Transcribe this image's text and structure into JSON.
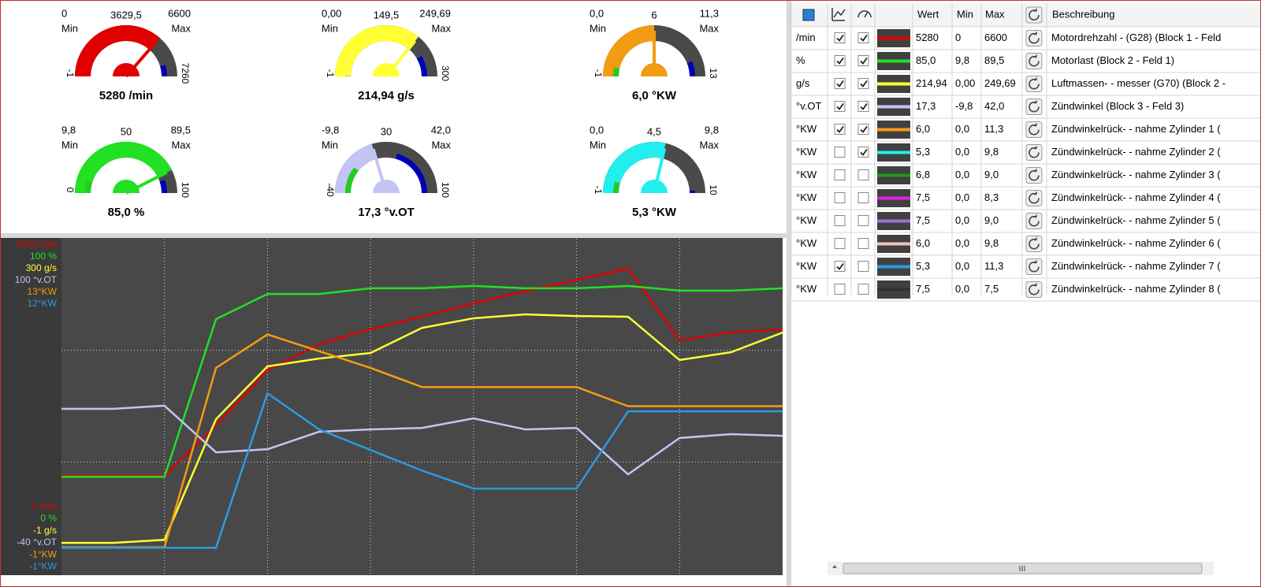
{
  "gauges": [
    {
      "min": {
        "value": 0,
        "label": "0"
      },
      "min_caption": "Min",
      "mid_label": "3629,5",
      "max": {
        "value": 6600,
        "label": "6600"
      },
      "max_caption": "Max",
      "scale_start": -1,
      "scale_end": 7260,
      "value": 5280,
      "value_label": "5280  /min",
      "color": "#e00000"
    },
    {
      "min": {
        "value": 0,
        "label": "0,00"
      },
      "min_caption": "Min",
      "mid_label": "149,5",
      "max": {
        "value": 249.69,
        "label": "249,69"
      },
      "max_caption": "Max",
      "scale_start": -1,
      "scale_end": 300,
      "value": 214.94,
      "value_label": "214,94  g/s",
      "color": "#ffff33"
    },
    {
      "min": {
        "value": 0,
        "label": "0,0"
      },
      "min_caption": "Min",
      "mid_label": "6",
      "max": {
        "value": 11.3,
        "label": "11,3"
      },
      "max_caption": "Max",
      "scale_start": -1,
      "scale_end": 13,
      "value": 6.0,
      "value_label": "6,0 °KW",
      "color": "#f39c12"
    },
    {
      "min": {
        "value": 9.8,
        "label": "9,8"
      },
      "min_caption": "Min",
      "mid_label": "50",
      "max": {
        "value": 89.5,
        "label": "89,5"
      },
      "max_caption": "Max",
      "scale_start": 0,
      "scale_end": 100,
      "value": 85.0,
      "value_label": "85,0  %",
      "color": "#22e022"
    },
    {
      "min": {
        "value": -9.8,
        "label": "-9,8"
      },
      "min_caption": "Min",
      "mid_label": "30",
      "max": {
        "value": 42.0,
        "label": "42,0"
      },
      "max_caption": "Max",
      "scale_start": -40,
      "scale_end": 100,
      "value": 17.3,
      "value_label": "17,3  °v.OT",
      "color": "#c4c4f4"
    },
    {
      "min": {
        "value": 0,
        "label": "0,0"
      },
      "min_caption": "Min",
      "mid_label": "4,5",
      "max": {
        "value": 9.8,
        "label": "9,8"
      },
      "max_caption": "Max",
      "scale_start": -1,
      "scale_end": 10,
      "value": 5.3,
      "value_label": "5,3 °KW",
      "color": "#22eeee"
    }
  ],
  "plot": {
    "series": [
      {
        "color": "#e00000",
        "top_label": "7260 /min",
        "bottom_label": "-1 /min",
        "lim": [
          -1,
          7260
        ],
        "values": [
          2120,
          2120,
          2120,
          3210,
          4410,
          4970,
          5300,
          5570,
          5860,
          6120,
          6370,
          6610,
          5060,
          5230,
          5300
        ]
      },
      {
        "color": "#22e022",
        "top_label": "100 %",
        "bottom_label": "0 %",
        "lim": [
          0,
          100
        ],
        "values": [
          28.9,
          28.9,
          28.9,
          76.0,
          83.5,
          83.5,
          85.2,
          85.2,
          85.9,
          85.2,
          85.2,
          85.9,
          84.5,
          84.5,
          85.2
        ]
      },
      {
        "color": "#ffff33",
        "top_label": "300 g/s",
        "bottom_label": "-1 g/s",
        "lim": [
          -1,
          300
        ],
        "values": [
          26.6,
          26.6,
          29.4,
          137.8,
          185.3,
          192.3,
          197.3,
          219.9,
          228.5,
          232.0,
          230.5,
          229.9,
          191.0,
          198.0,
          215.7
        ]
      },
      {
        "color": "#c4c4f4",
        "top_label": "100 °v.OT",
        "bottom_label": "-40 °v.OT",
        "lim": [
          -40,
          100
        ],
        "values": [
          28.9,
          28.9,
          30.2,
          10.7,
          12.0,
          19.3,
          20.3,
          20.9,
          24.9,
          20.3,
          20.9,
          1.5,
          16.7,
          18.3,
          17.6
        ]
      },
      {
        "color": "#f39c12",
        "top_label": "13°KW",
        "bottom_label": "-1°KW",
        "lim": [
          -1,
          13
        ],
        "values": [
          0.1,
          0.1,
          0.1,
          7.6,
          9.0,
          8.3,
          7.6,
          6.8,
          6.8,
          6.8,
          6.8,
          6.0,
          6.0,
          6.0,
          6.0
        ]
      },
      {
        "color": "#2b9be0",
        "top_label": "12°KW",
        "bottom_label": "-1°KW",
        "lim": [
          -1,
          12
        ],
        "values": [
          0.0,
          0.0,
          0.0,
          0.0,
          6.0,
          4.6,
          3.8,
          3.0,
          2.3,
          2.3,
          2.3,
          5.3,
          5.3,
          5.3,
          5.3
        ]
      }
    ]
  },
  "table": {
    "header": [
      "Wert",
      "Min",
      "Max",
      "Beschreibung"
    ],
    "rows": [
      {
        "unit": "/min",
        "chart": true,
        "gauge": true,
        "color": "#e00000",
        "value": "5280",
        "min": "0",
        "max": "6600",
        "description": "Motordrehzahl - (G28) (Block 1 - Feld"
      },
      {
        "unit": "%",
        "chart": true,
        "gauge": true,
        "color": "#22e022",
        "value": "85,0",
        "min": "9,8",
        "max": "89,5",
        "description": "Motorlast (Block 2 - Feld 1)"
      },
      {
        "unit": "g/s",
        "chart": true,
        "gauge": true,
        "color": "#ffff33",
        "value": "214,94",
        "min": "0,00",
        "max": "249,69",
        "description": "Luftmassen- - messer (G70) (Block 2 -"
      },
      {
        "unit": "°v.OT",
        "chart": true,
        "gauge": true,
        "color": "#c4c4f4",
        "value": "17,3",
        "min": "-9,8",
        "max": "42,0",
        "description": "Zündwinkel (Block 3 - Feld 3)"
      },
      {
        "unit": "°KW",
        "chart": true,
        "gauge": true,
        "color": "#f39c12",
        "value": "6,0",
        "min": "0,0",
        "max": "11,3",
        "description": "Zündwinkelrück- - nahme Zylinder 1 ("
      },
      {
        "unit": "°KW",
        "chart": false,
        "gauge": true,
        "color": "#22eeee",
        "value": "5,3",
        "min": "0,0",
        "max": "9,8",
        "description": "Zündwinkelrück- - nahme Zylinder 2 ("
      },
      {
        "unit": "°KW",
        "chart": false,
        "gauge": false,
        "color": "#1a9a1a",
        "value": "6,8",
        "min": "0,0",
        "max": "9,0",
        "description": "Zündwinkelrück- - nahme Zylinder 3 ("
      },
      {
        "unit": "°KW",
        "chart": false,
        "gauge": false,
        "color": "#e020e0",
        "value": "7,5",
        "min": "0,0",
        "max": "8,3",
        "description": "Zündwinkelrück- - nahme Zylinder 4 ("
      },
      {
        "unit": "°KW",
        "chart": false,
        "gauge": false,
        "color": "#9a70d8",
        "value": "7,5",
        "min": "0,0",
        "max": "9,0",
        "description": "Zündwinkelrück- - nahme Zylinder 5 ("
      },
      {
        "unit": "°KW",
        "chart": false,
        "gauge": false,
        "color": "#f0c0c0",
        "value": "6,0",
        "min": "0,0",
        "max": "9,8",
        "description": "Zündwinkelrück- - nahme Zylinder 6 ("
      },
      {
        "unit": "°KW",
        "chart": true,
        "gauge": false,
        "color": "#2b9be0",
        "value": "5,3",
        "min": "0,0",
        "max": "11,3",
        "description": "Zündwinkelrück- - nahme Zylinder 7 ("
      },
      {
        "unit": "°KW",
        "chart": false,
        "gauge": false,
        "color": "#333333",
        "value": "7,5",
        "min": "0,0",
        "max": "7,5",
        "description": "Zündwinkelrück- - nahme Zylinder 8 ("
      }
    ]
  }
}
